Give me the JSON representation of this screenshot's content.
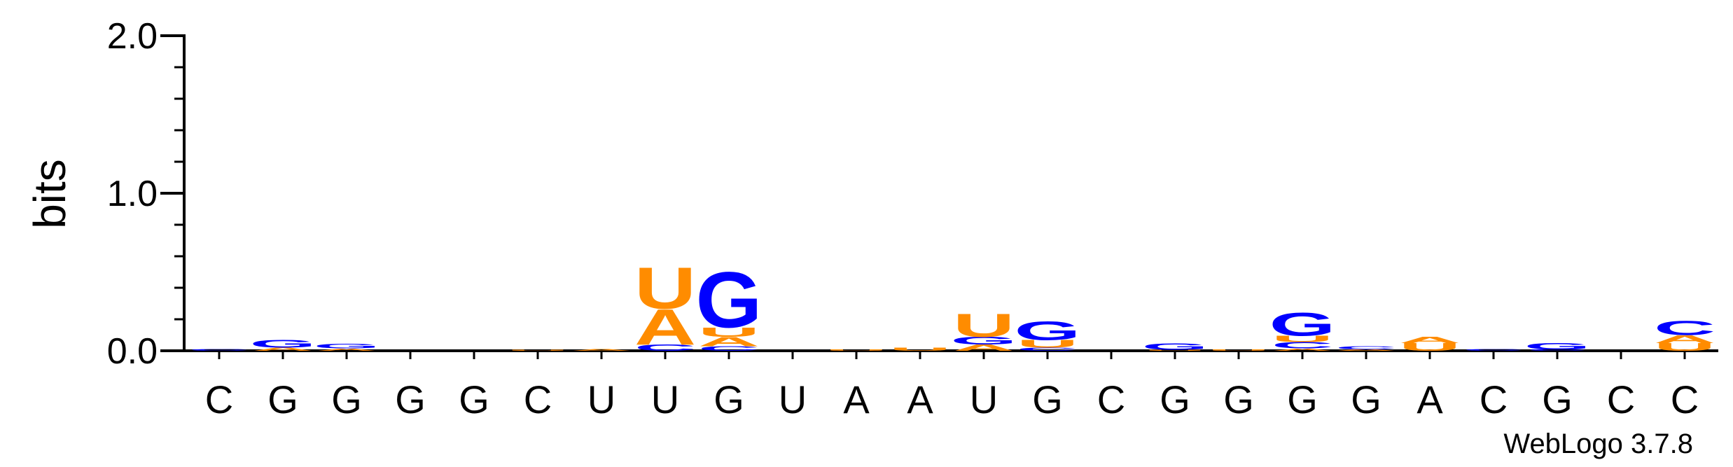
{
  "chart_data": {
    "type": "sequence_logo",
    "ylabel": "bits",
    "ylim": [
      0,
      2.0
    ],
    "yticks": [
      {
        "value": 0.0,
        "label": "0.0"
      },
      {
        "value": 1.0,
        "label": "1.0"
      },
      {
        "value": 2.0,
        "label": "2.0"
      }
    ],
    "x_labels": [
      "C",
      "G",
      "G",
      "G",
      "G",
      "C",
      "U",
      "U",
      "G",
      "U",
      "A",
      "A",
      "U",
      "G",
      "C",
      "G",
      "G",
      "G",
      "G",
      "A",
      "C",
      "G",
      "C",
      "C"
    ],
    "colors": {
      "A": "#ff8c00",
      "U": "#ff8c00",
      "G": "#0000ff",
      "C": "#0000ff"
    },
    "positions": [
      [
        [
          "C",
          0.01
        ]
      ],
      [
        [
          "A",
          0.02
        ],
        [
          "G",
          0.05
        ]
      ],
      [
        [
          "A",
          0.015
        ],
        [
          "G",
          0.03
        ]
      ],
      [],
      [],
      [
        [
          "U",
          0.006
        ]
      ],
      [
        [
          "A",
          0.012
        ]
      ],
      [
        [
          "C",
          0.04
        ],
        [
          "A",
          0.23
        ],
        [
          "U",
          0.27
        ]
      ],
      [
        [
          "C",
          0.03
        ],
        [
          "A",
          0.06
        ],
        [
          "U",
          0.06
        ],
        [
          "G",
          0.36
        ]
      ],
      [],
      [
        [
          "U",
          0.008
        ]
      ],
      [
        [
          "U",
          0.02
        ]
      ],
      [
        [
          "A",
          0.04
        ],
        [
          "G",
          0.05
        ],
        [
          "U",
          0.15
        ]
      ],
      [
        [
          "C",
          0.02
        ],
        [
          "U",
          0.05
        ],
        [
          "G",
          0.12
        ]
      ],
      [],
      [
        [
          "U",
          0.006
        ],
        [
          "G",
          0.04
        ]
      ],
      [
        [
          "U",
          0.008
        ]
      ],
      [
        [
          "A",
          0.015
        ],
        [
          "C",
          0.04
        ],
        [
          "U",
          0.04
        ],
        [
          "G",
          0.15
        ]
      ],
      [
        [
          "A",
          0.01
        ],
        [
          "C",
          0.02
        ]
      ],
      [
        [
          "U",
          0.05
        ],
        [
          "A",
          0.04
        ]
      ],
      [
        [
          "C",
          0.01
        ]
      ],
      [
        [
          "C",
          0.01
        ],
        [
          "G",
          0.04
        ]
      ],
      [],
      [
        [
          "U",
          0.05
        ],
        [
          "A",
          0.05
        ],
        [
          "C",
          0.09
        ]
      ]
    ]
  },
  "credit": "WebLogo 3.7.8"
}
